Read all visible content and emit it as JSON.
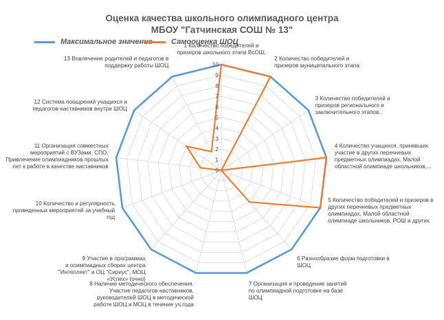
{
  "chart_data": {
    "type": "radar",
    "title_lines": [
      "Оценка качества школьного олимпиадного центра",
      "МБОУ \"Гатчинская СОШ № 13\""
    ],
    "categories": [
      [
        "1 Количество победителей и",
        "призеров школьного этапа ВсОШ."
      ],
      [
        "2 Количество победителей и",
        "призеров муниципального этапа."
      ],
      [
        "3 Количество победителей и",
        "призеров  регионального и",
        "заключительного этапов."
      ],
      [
        "4 Количество учащихся, принявших",
        "участие  в других перечневых",
        "предметных олимпиадах, Малой",
        "областной олимпиаде школьников,..."
      ],
      [
        "5 Количество победителей и призеров в",
        "других перечневых предметных",
        "олимпиадах, Малой областной",
        "олимпиаде школьников, РОШ и других"
      ],
      [
        "6 Разнообразие форм подготовки  в",
        "ШОЦ"
      ],
      [
        "7 Организация и проведение занятий",
        "по олимпиадной подготовке на базе",
        "ШОЦ"
      ],
      [
        "8 Наличие методического обеспечения.",
        "Участие педагогов-наставников,",
        "руководителей ШОЦ в методической",
        "работе ШОЦ и МОЦ в течение уч.года"
      ],
      [
        "9 Участие в программах",
        "и олимпиадных сборах центра",
        "\"Интеллект\" и ОЦ \"Сириус\", МОЦ",
        "«Успех» (очно)"
      ],
      [
        "10 Количество  и регулярность",
        "проведенных мероприятий за учебный",
        "год"
      ],
      [
        "11 Организация совместных",
        "мероприятий с ВУЗами,  СПО.",
        "Привлечение олимпиадников прошлых",
        "лет  к работе в качестве наставников"
      ],
      [
        "12 Система поощрений учащихся и",
        "педагогов-наставников внутри ШОЦ"
      ],
      [
        "13 Вовлечение родителей и педагогов в",
        "поддержку работы ШОЦ"
      ]
    ],
    "series": [
      {
        "name": "Максимальное значение",
        "color": "#5B9BD5",
        "values": [
          10,
          10,
          10,
          10,
          10,
          10,
          10,
          10,
          10,
          10,
          10,
          10,
          10
        ]
      },
      {
        "name": "Самооценка  ШОЦ",
        "color": "#ED7D31",
        "values": [
          10,
          10,
          0,
          10,
          10,
          4,
          0,
          0,
          0,
          0,
          2,
          4,
          2
        ]
      }
    ],
    "r_ticks": [
      0,
      1,
      2,
      3,
      4,
      5,
      6,
      7,
      8,
      9,
      10
    ],
    "rlim": [
      0,
      10
    ],
    "grid": true,
    "legend_position": "top"
  }
}
